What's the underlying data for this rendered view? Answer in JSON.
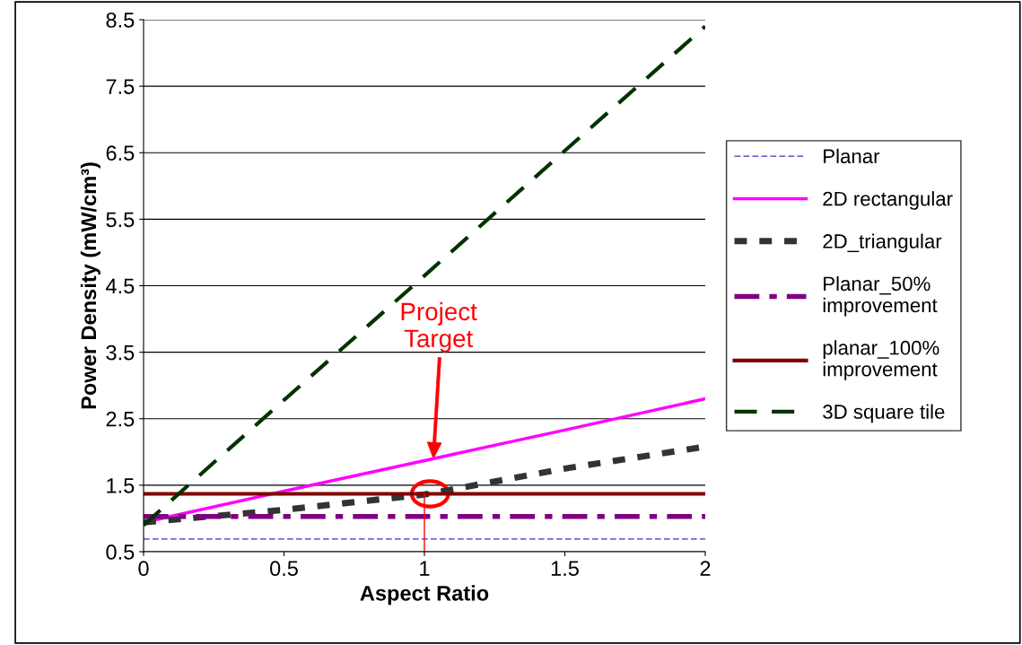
{
  "chart_data": {
    "type": "line",
    "xlabel": "Aspect Ratio",
    "ylabel": "Power Density (mW/cm³)",
    "x": [
      0,
      0.5,
      1,
      1.5,
      2
    ],
    "series": [
      {
        "name": "Planar",
        "color": "#3333cc",
        "values": [
          0.69,
          0.69,
          0.69,
          0.69,
          0.69
        ],
        "line_style": "dashed"
      },
      {
        "name": "2D rectangular",
        "color": "#ff00ff",
        "values": [
          0.94,
          1.41,
          1.87,
          2.33,
          2.8
        ],
        "line_style": "solid"
      },
      {
        "name": "2D_triangular",
        "color": "#333333",
        "values": [
          0.94,
          1.13,
          1.36,
          1.75,
          2.08
        ],
        "line_style": "dashed"
      },
      {
        "name": "Planar_50%\nimprovement",
        "color": "#800080",
        "values": [
          1.03,
          1.03,
          1.03,
          1.03,
          1.03
        ],
        "line_style": "dashed"
      },
      {
        "name": "planar_100%\nimprovement",
        "color": "#800000",
        "values": [
          1.37,
          1.37,
          1.37,
          1.37,
          1.37
        ],
        "line_style": "solid"
      },
      {
        "name": "3D square tile",
        "color": "#003300",
        "values": [
          0.9,
          2.78,
          4.65,
          6.53,
          8.4
        ],
        "line_style": "dashed"
      }
    ],
    "xlim": [
      0,
      2
    ],
    "xticks": [
      0,
      0.5,
      1,
      1.5,
      2
    ],
    "ylim": [
      0.5,
      8.5
    ],
    "yticks": [
      0.5,
      1.5,
      2.5,
      3.5,
      4.5,
      5.5,
      6.5,
      7.5,
      8.5
    ],
    "grid": "y",
    "legend": "right",
    "ref_lines": [
      {
        "axis": "x",
        "value": 1,
        "color": "#ff0000"
      }
    ],
    "annotations": [
      "Project\nTarget"
    ]
  }
}
